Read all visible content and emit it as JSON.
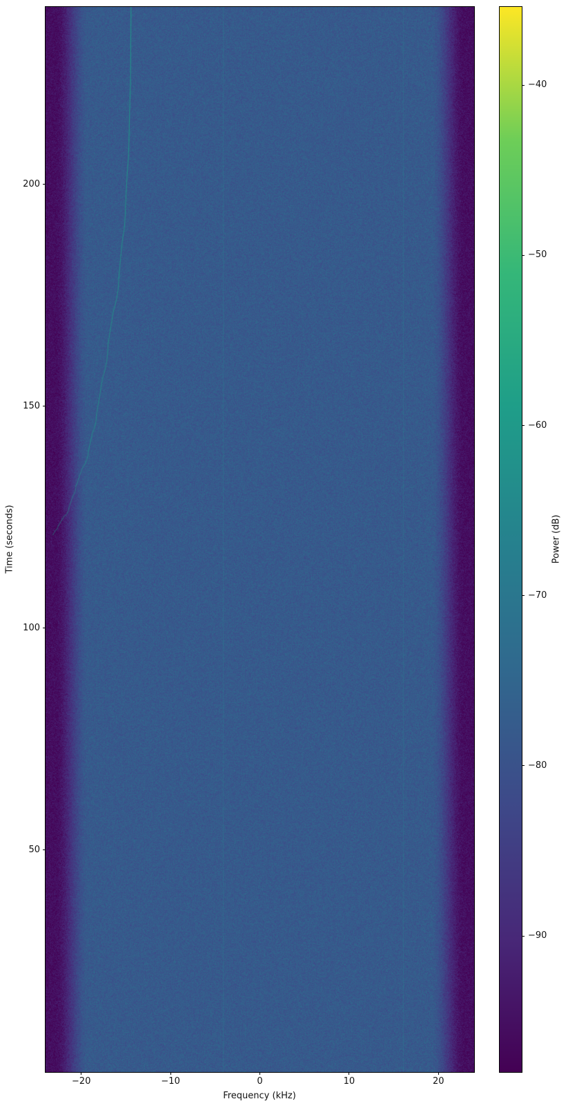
{
  "chart_data": {
    "type": "heatmap",
    "title": "",
    "xlabel": "Frequency (kHz)",
    "ylabel": "Time (seconds)",
    "colorbar_label": "Power (dB)",
    "xlim": [
      -24,
      24
    ],
    "ylim": [
      0,
      240
    ],
    "x_ticks": [
      -20,
      -10,
      0,
      10,
      20
    ],
    "x_tick_labels": [
      "−20",
      "−10",
      "0",
      "10",
      "20"
    ],
    "y_ticks": [
      50,
      100,
      150,
      200
    ],
    "y_tick_labels": [
      "50",
      "100",
      "150",
      "200"
    ],
    "colorbar_ticks": [
      -40,
      -50,
      -60,
      -70,
      -80,
      -90
    ],
    "colorbar_tick_labels": [
      "−40",
      "−50",
      "−60",
      "−70",
      "−80",
      "−90"
    ],
    "clim": [
      -98.0,
      -35.4
    ],
    "colormap": "viridis",
    "colormap_stops": [
      [
        0.0,
        "#440154"
      ],
      [
        0.125,
        "#482878"
      ],
      [
        0.25,
        "#3e4989"
      ],
      [
        0.375,
        "#31688e"
      ],
      [
        0.5,
        "#26828e"
      ],
      [
        0.625,
        "#1f9e89"
      ],
      [
        0.75,
        "#35b779"
      ],
      [
        0.875,
        "#6ece58"
      ],
      [
        1.0,
        "#fde725"
      ]
    ],
    "noise_floor_db": -78,
    "noise_jitter_db": 4.6,
    "passband_edge_khz": 19.2,
    "stopband_edge_khz": 22.9,
    "stopband_db": -95.5,
    "chirp": {
      "power_db": -60,
      "points_time_freq": [
        [
          240,
          -14.43
        ],
        [
          226,
          -14.47
        ],
        [
          210,
          -14.66
        ],
        [
          195,
          -15.05
        ],
        [
          179,
          -15.8
        ],
        [
          164,
          -17.0
        ],
        [
          148,
          -18.3
        ],
        [
          140,
          -19.2
        ],
        [
          132,
          -20.6
        ],
        [
          127,
          -21.4
        ],
        [
          123,
          -22.6
        ],
        [
          121,
          -23.2
        ]
      ]
    },
    "tones": [
      {
        "freq_khz": -4.1,
        "power_db": -74.5
      },
      {
        "freq_khz": 16.0,
        "power_db": -74.5
      }
    ]
  }
}
